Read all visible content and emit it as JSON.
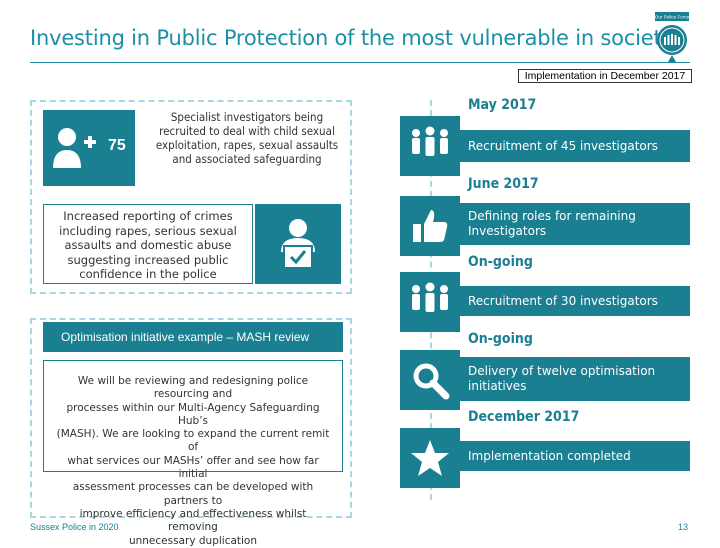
{
  "header": {
    "title": "Investing in Public Protection of the most vulnerable in society",
    "implementation_label": "Implementation in December 2017",
    "logo_label": "Our Police Force"
  },
  "left": {
    "stat1": {
      "number": "75",
      "description_lines": [
        "Specialist investigators being",
        "recruited to deal with child sexual",
        "exploitation, rapes, sexual assaults",
        "and associated safeguarding"
      ]
    },
    "stat2": {
      "description_lines": [
        "Increased reporting of crimes",
        "including rapes, serious sexual",
        "assaults and domestic abuse",
        "suggesting increased public",
        "confidence in the police"
      ]
    },
    "mash": {
      "heading": "Optimisation initiative example – MASH review",
      "body_lines": [
        "We will be reviewing and redesigning police resourcing and",
        "processes within our Multi-Agency Safeguarding Hub’s",
        "(MASH). We are looking to expand the current remit of",
        "what services our MASHs’ offer and see how far initial",
        "assessment processes can be developed with partners to",
        "improve efficiency and effectiveness whilst removing",
        "unnecessary duplication"
      ]
    }
  },
  "timeline": [
    {
      "heading": "May 2017",
      "text": "Recruitment of 45 investigators",
      "icon": "people-group-icon"
    },
    {
      "heading": "June 2017",
      "text": "Defining roles for remaining Investigators",
      "icon": "thumbs-up-icon"
    },
    {
      "heading": "On-going",
      "text": "Recruitment of 30 investigators",
      "icon": "people-group-icon"
    },
    {
      "heading": "On-going",
      "text": "Delivery of twelve optimisation initiatives",
      "icon": "magnifier-icon"
    },
    {
      "heading": "December 2017",
      "text": "Implementation completed",
      "icon": "star-icon"
    }
  ],
  "footer": {
    "left": "Sussex Police in 2020",
    "page_number": "13"
  },
  "colors": {
    "accent": "#1b7f92",
    "title": "#1a8fa6",
    "dashed_border": "#a9d6e0"
  }
}
